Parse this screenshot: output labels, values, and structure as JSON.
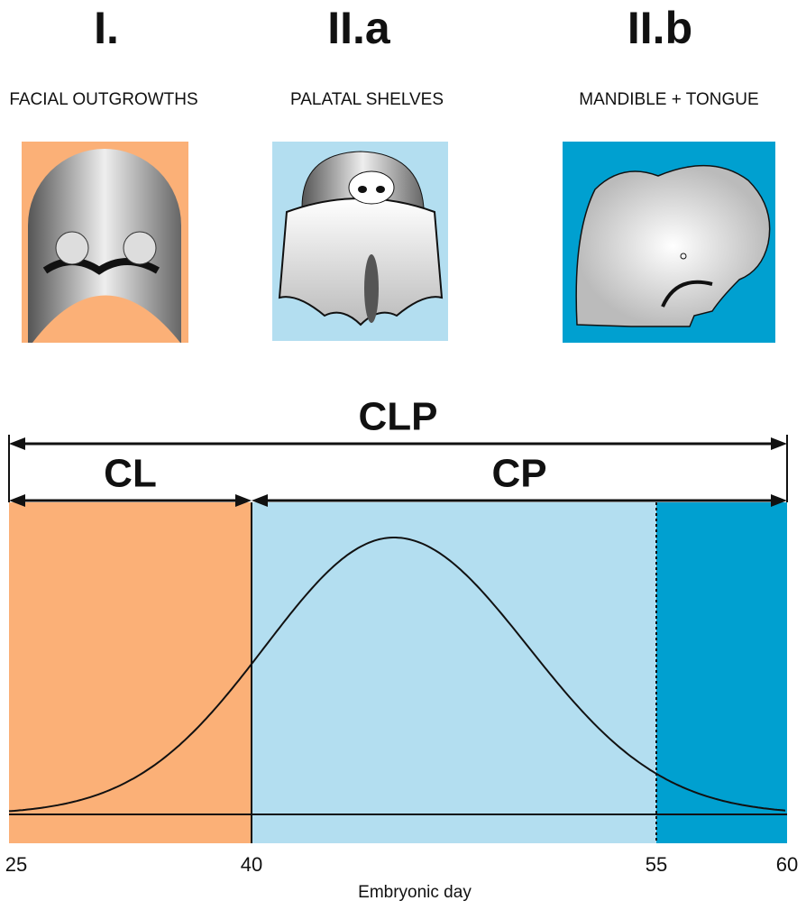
{
  "stages": [
    {
      "numeral": "I.",
      "label": "FACIAL OUTGROWTHS"
    },
    {
      "numeral": "II.a",
      "label": "PALATAL SHELVES"
    },
    {
      "numeral": "II.b",
      "label": "MANDIBLE + TONGUE"
    }
  ],
  "timeline": {
    "x_label": "Embryonic day",
    "xlim": [
      25,
      60
    ],
    "xticks": [
      25,
      40,
      55,
      60
    ],
    "spans": [
      {
        "label": "CLP",
        "start": 25,
        "end": 60
      },
      {
        "label": "CL",
        "start": 25,
        "end": 40
      },
      {
        "label": "CP",
        "start": 40,
        "end": 60
      }
    ],
    "periods": [
      {
        "start": 25,
        "end": 40,
        "color": "#fbb077"
      },
      {
        "start": 40,
        "end": 55,
        "color": "#b3def0"
      },
      {
        "start": 55,
        "end": 60,
        "color": "#00a0d0"
      }
    ]
  }
}
